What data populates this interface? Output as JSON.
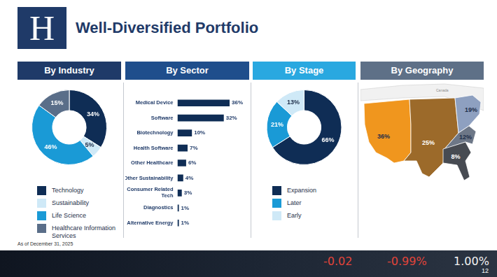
{
  "header": {
    "logo": "H",
    "title": "Well-Diversified Portfolio"
  },
  "chart_data": [
    {
      "type": "doughnut",
      "title": "By Industry",
      "categories": [
        "Technology",
        "Sustainability",
        "Life Science",
        "Healthcare Information Services"
      ],
      "values": [
        34,
        5,
        46,
        15
      ],
      "value_labels": [
        "34%",
        "5%",
        "46%",
        "15%"
      ],
      "colors": [
        "#0f2d55",
        "#cfe9f7",
        "#1a9ad6",
        "#5a6e89"
      ],
      "data_labels": true,
      "legend": "bottom"
    },
    {
      "type": "bar",
      "title": "By Sector",
      "orientation": "horizontal",
      "categories": [
        "Medical Device",
        "Software",
        "Biotechnology",
        "Health Software",
        "Other Healthcare",
        "Other Sustainability",
        "Consumer Related Tech",
        "Diagnostics",
        "Alternative Energy"
      ],
      "values": [
        36,
        32,
        10,
        7,
        6,
        4,
        3,
        1,
        1
      ],
      "value_labels": [
        "36%",
        "32%",
        "10%",
        "7%",
        "6%",
        "4%",
        "3%",
        "1%",
        "1%"
      ],
      "color": "#0f2d55",
      "xlim": [
        0,
        36
      ],
      "data_labels": true,
      "tick_labels": "y",
      "grid": false
    },
    {
      "type": "doughnut",
      "title": "By Stage",
      "categories": [
        "Expansion",
        "Later",
        "Early"
      ],
      "values": [
        66,
        21,
        13
      ],
      "value_labels": [
        "66%",
        "21%",
        "13%"
      ],
      "colors": [
        "#0f2d55",
        "#1a9ad6",
        "#cfe9f7"
      ],
      "data_labels": true,
      "legend": "bottom"
    },
    {
      "type": "map",
      "title": "By Geography",
      "values": [
        36,
        25,
        19,
        12,
        8
      ],
      "value_labels": [
        "36%",
        "25%",
        "19%",
        "12%",
        "8%"
      ],
      "colors": [
        "#f0961e",
        "#9c6a2a",
        "#8ea0c0",
        "#6d7787",
        "#474b52"
      ],
      "data_labels": true,
      "annotations": [
        "Canada"
      ]
    }
  ],
  "footnote": "As of December 31, 2025",
  "ticker": [
    "-0.02",
    "-0.99%",
    "1.00%"
  ],
  "page_number": "12"
}
